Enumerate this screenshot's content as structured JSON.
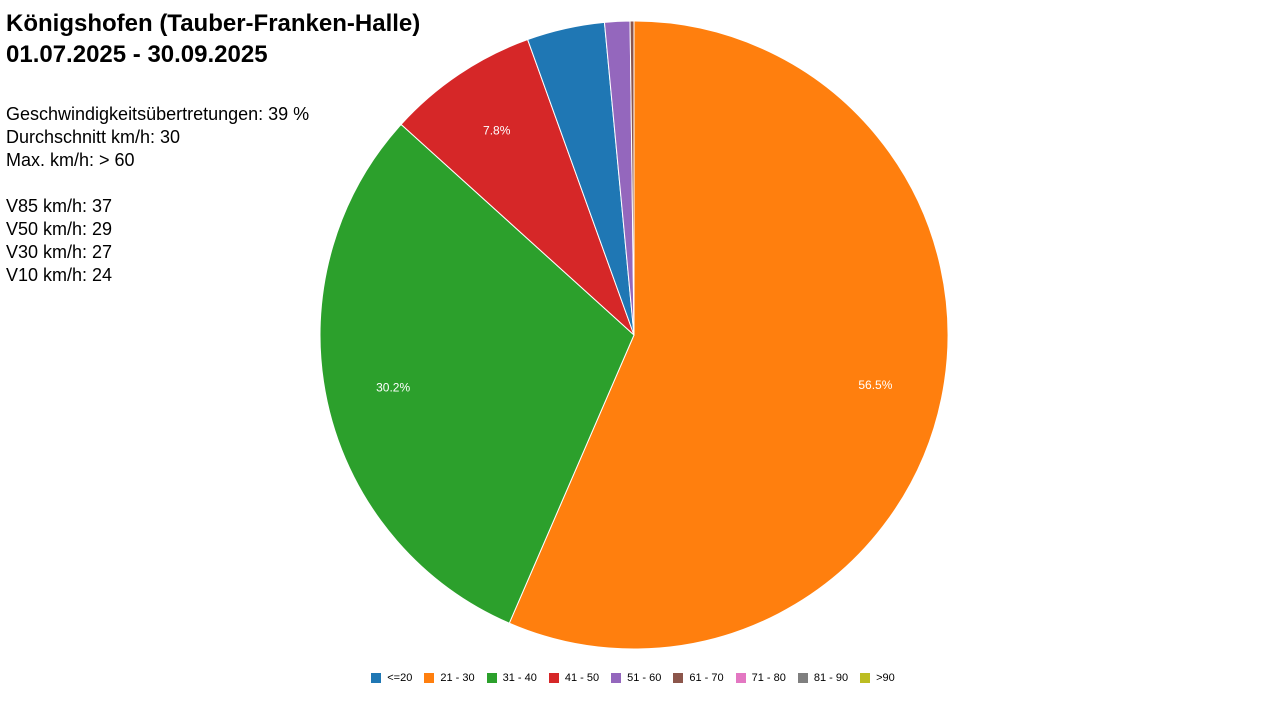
{
  "title": {
    "line1": "Königshofen (Tauber-Franken-Halle)",
    "line2": "01.07.2025 - 30.09.2025"
  },
  "stats": {
    "overspeed": "Geschwindigkeitsübertretungen: 39 %",
    "average": "Durchschnitt km/h: 30",
    "max": "Max. km/h: > 60",
    "v85": "V85 km/h: 37",
    "v50": "V50 km/h: 29",
    "v30": "V30 km/h: 27",
    "v10": "V10 km/h: 24"
  },
  "chart_data": {
    "type": "pie",
    "categories": [
      "<=20",
      "21 - 30",
      "31 - 40",
      "41 - 50",
      "51 - 60",
      "61 - 70",
      "71 - 80",
      "81 - 90",
      ">90"
    ],
    "values": [
      4.0,
      56.5,
      30.2,
      7.8,
      1.3,
      0.2,
      0.0,
      0.0,
      0.0
    ],
    "slice_labels": [
      "",
      "56.5%",
      "30.2%",
      "7.8%",
      "",
      "",
      "",
      "",
      ""
    ],
    "colors": [
      "#1f77b4",
      "#ff7f0e",
      "#2ca02c",
      "#d62728",
      "#9467bd",
      "#8c564b",
      "#e377c2",
      "#7f7f7f",
      "#bcbd22"
    ],
    "order": "clockwise-from-top, last slice first",
    "legend_position": "bottom"
  }
}
